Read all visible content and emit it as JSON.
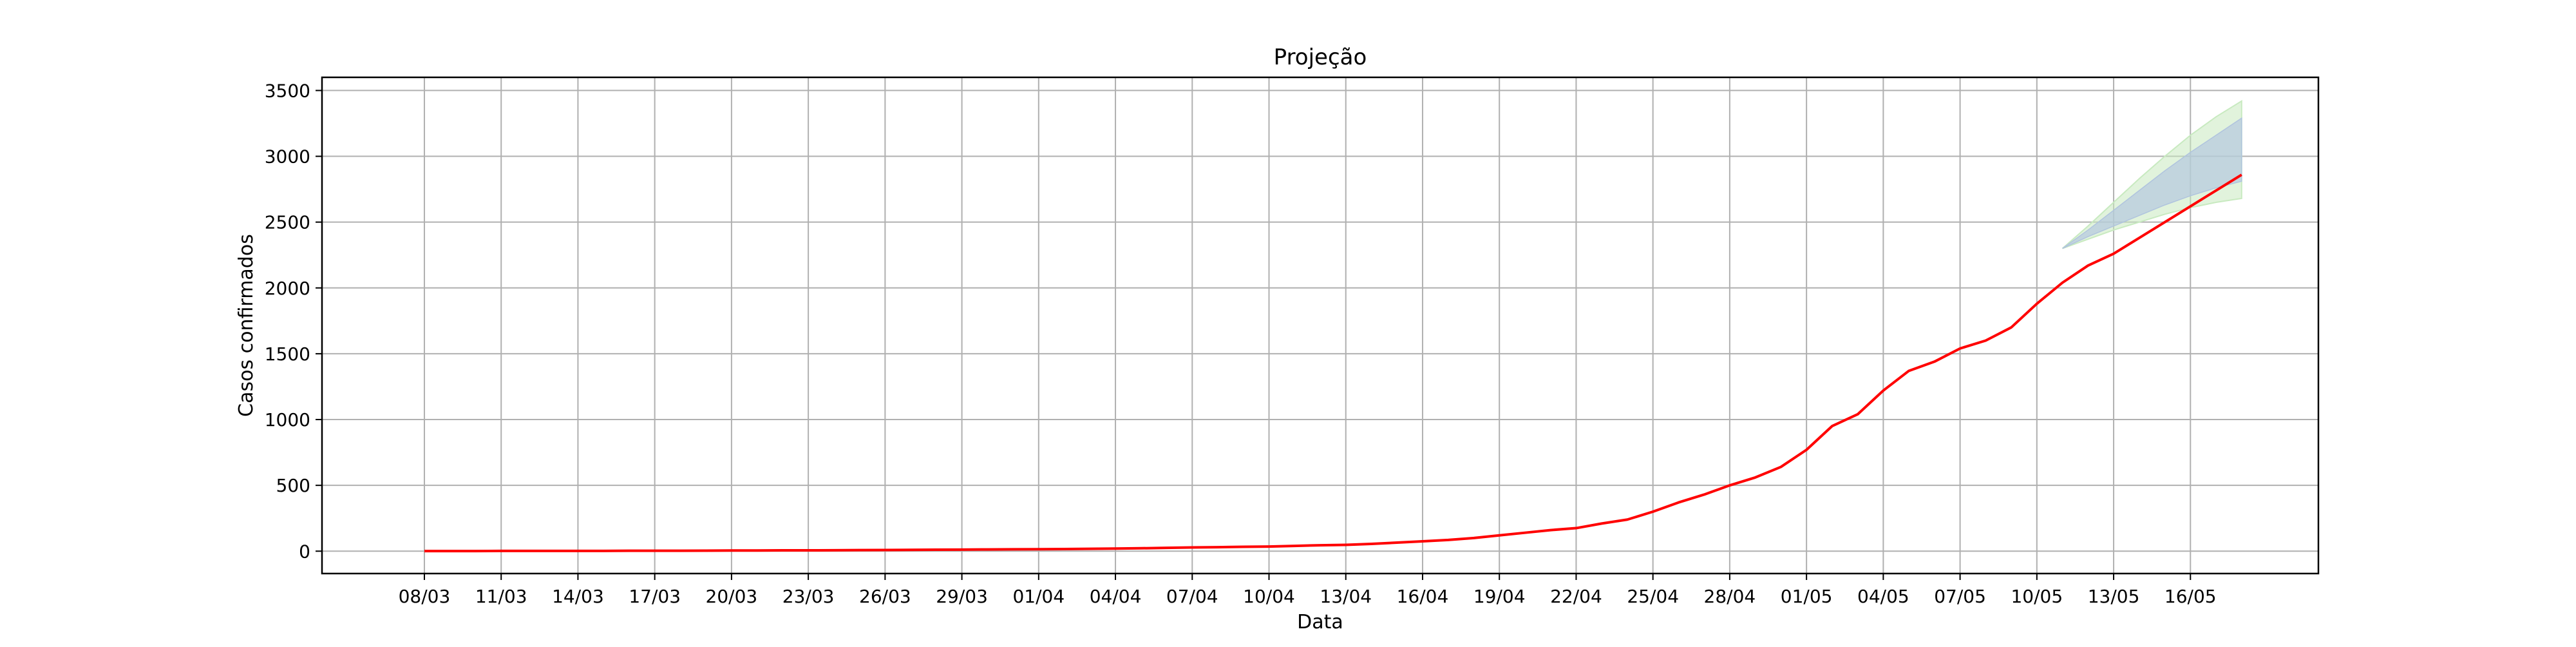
{
  "chart_data": {
    "type": "line",
    "title": "Projeção",
    "xlabel": "Data",
    "ylabel": "Casos confirmados",
    "x_tick_labels": [
      "08/03",
      "11/03",
      "14/03",
      "17/03",
      "20/03",
      "23/03",
      "26/03",
      "29/03",
      "01/04",
      "04/04",
      "07/04",
      "10/04",
      "13/04",
      "16/04",
      "19/04",
      "22/04",
      "25/04",
      "28/04",
      "01/05",
      "04/05",
      "07/05",
      "10/05",
      "13/05",
      "16/05"
    ],
    "y_ticks": [
      0,
      500,
      1000,
      1500,
      2000,
      2500,
      3000,
      3500
    ],
    "ylim": [
      -170,
      3600
    ],
    "xlim_dates": [
      "2020-03-04",
      "2020-05-21"
    ],
    "grid": true,
    "series": [
      {
        "color": "#ff0000",
        "x": [
          "2020-03-08",
          "2020-03-09",
          "2020-03-10",
          "2020-03-11",
          "2020-03-12",
          "2020-03-13",
          "2020-03-14",
          "2020-03-15",
          "2020-03-16",
          "2020-03-17",
          "2020-03-18",
          "2020-03-19",
          "2020-03-20",
          "2020-03-21",
          "2020-03-22",
          "2020-03-23",
          "2020-03-24",
          "2020-03-25",
          "2020-03-26",
          "2020-03-27",
          "2020-03-28",
          "2020-03-29",
          "2020-03-30",
          "2020-03-31",
          "2020-04-01",
          "2020-04-02",
          "2020-04-03",
          "2020-04-04",
          "2020-04-05",
          "2020-04-06",
          "2020-04-07",
          "2020-04-08",
          "2020-04-09",
          "2020-04-10",
          "2020-04-11",
          "2020-04-12",
          "2020-04-13",
          "2020-04-14",
          "2020-04-15",
          "2020-04-16",
          "2020-04-17",
          "2020-04-18",
          "2020-04-19",
          "2020-04-20",
          "2020-04-21",
          "2020-04-22",
          "2020-04-23",
          "2020-04-24",
          "2020-04-25",
          "2020-04-26",
          "2020-04-27",
          "2020-04-28",
          "2020-04-29",
          "2020-04-30",
          "2020-05-01",
          "2020-05-02",
          "2020-05-03",
          "2020-05-04",
          "2020-05-05",
          "2020-05-06",
          "2020-05-07",
          "2020-05-08",
          "2020-05-09",
          "2020-05-10",
          "2020-05-11",
          "2020-05-12",
          "2020-05-13",
          "2020-05-14",
          "2020-05-15",
          "2020-05-16",
          "2020-05-17",
          "2020-05-18"
        ],
        "y": [
          1,
          1,
          1,
          2,
          2,
          2,
          2,
          2,
          3,
          3,
          3,
          4,
          5,
          5,
          6,
          6,
          7,
          8,
          9,
          10,
          11,
          12,
          13,
          14,
          15,
          16,
          18,
          20,
          22,
          25,
          28,
          30,
          33,
          35,
          40,
          45,
          48,
          55,
          65,
          75,
          85,
          100,
          120,
          140,
          160,
          175,
          210,
          240,
          300,
          370,
          430,
          500,
          560,
          640,
          770,
          950,
          1040,
          1220,
          1370,
          1440,
          1540,
          1600,
          1700,
          1880,
          2040,
          2170,
          2260,
          2380,
          2500,
          2620,
          2740,
          2860
        ]
      }
    ],
    "projection": {
      "x": [
        "2020-05-11",
        "2020-05-12",
        "2020-05-13",
        "2020-05-14",
        "2020-05-15",
        "2020-05-16",
        "2020-05-17",
        "2020-05-18"
      ],
      "y": [
        2300,
        2420,
        2540,
        2660,
        2780,
        2900,
        2990,
        3050
      ],
      "inner_band": {
        "color": "#b0c4de",
        "lower": [
          2300,
          2390,
          2470,
          2550,
          2630,
          2700,
          2760,
          2810
        ],
        "upper": [
          2300,
          2440,
          2590,
          2740,
          2890,
          3030,
          3160,
          3290
        ]
      },
      "outer_band": {
        "color": "#c8eac0",
        "lower": [
          2300,
          2370,
          2440,
          2500,
          2560,
          2610,
          2650,
          2680
        ],
        "upper": [
          2300,
          2470,
          2650,
          2830,
          3000,
          3160,
          3300,
          3420
        ]
      }
    }
  }
}
